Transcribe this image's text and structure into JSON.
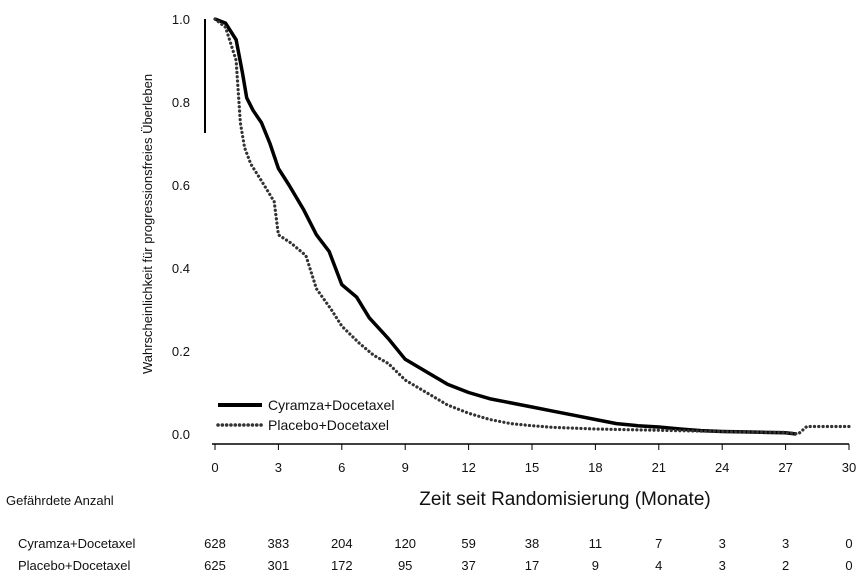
{
  "chart_data": {
    "type": "line",
    "title": "",
    "xlabel": "Zeit seit Randomisierung (Monate)",
    "ylabel": "Wahrscheinlichkeit für progressionsfreies Überleben",
    "xlim": [
      0,
      30
    ],
    "ylim": [
      0,
      1
    ],
    "x_ticks": [
      0,
      3,
      6,
      9,
      12,
      15,
      18,
      21,
      24,
      27,
      30
    ],
    "y_ticks": [
      "0.0",
      "0.2",
      "0.4",
      "0.6",
      "0.8",
      "1.0"
    ],
    "y_tick_values": [
      0,
      0.2,
      0.4,
      0.6,
      0.8,
      1.0
    ],
    "grid": false,
    "legend_position": "bottom-left",
    "series": [
      {
        "name": "Cyramza+Docetaxel",
        "style": "solid",
        "color": "#000000",
        "x": [
          0,
          0.5,
          1.0,
          1.3,
          1.5,
          1.8,
          2.2,
          2.6,
          3.0,
          3.5,
          4.2,
          4.8,
          5.4,
          6.0,
          6.7,
          7.3,
          8.2,
          9.0,
          10.0,
          11.0,
          12.0,
          13.0,
          14.0,
          15.0,
          16.0,
          17.0,
          18.0,
          19.0,
          20.0,
          21.0,
          22.0,
          23.0,
          24.0,
          25.0,
          26.0,
          27.0,
          27.5
        ],
        "y": [
          1.0,
          0.99,
          0.95,
          0.87,
          0.81,
          0.78,
          0.75,
          0.7,
          0.64,
          0.6,
          0.54,
          0.48,
          0.44,
          0.36,
          0.33,
          0.28,
          0.23,
          0.18,
          0.15,
          0.12,
          0.1,
          0.085,
          0.075,
          0.065,
          0.055,
          0.045,
          0.035,
          0.025,
          0.02,
          0.017,
          0.012,
          0.008,
          0.006,
          0.005,
          0.004,
          0.003,
          0.0
        ]
      },
      {
        "name": "Placebo+Docetaxel",
        "style": "dotted",
        "color": "#333333",
        "x": [
          0,
          0.5,
          1.0,
          1.2,
          1.4,
          1.7,
          2.2,
          2.8,
          3.0,
          3.6,
          4.3,
          4.8,
          5.5,
          6.0,
          6.8,
          7.5,
          8.2,
          9.0,
          10.0,
          11.0,
          12.0,
          13.0,
          14.0,
          15.0,
          16.0,
          17.0,
          18.0,
          19.0,
          20.0,
          21.0,
          22.0,
          23.0,
          24.0,
          25.0,
          26.0,
          27.0,
          27.6,
          28.0,
          30.0
        ],
        "y": [
          1.0,
          0.98,
          0.9,
          0.75,
          0.69,
          0.65,
          0.61,
          0.56,
          0.48,
          0.46,
          0.43,
          0.35,
          0.3,
          0.26,
          0.22,
          0.19,
          0.17,
          0.13,
          0.1,
          0.07,
          0.05,
          0.035,
          0.025,
          0.02,
          0.016,
          0.014,
          0.012,
          0.011,
          0.01,
          0.009,
          0.008,
          0.007,
          0.006,
          0.005,
          0.004,
          0.004,
          0.0,
          0.018,
          0.018
        ]
      }
    ],
    "risk_table": {
      "title": "Gefährdete Anzahl",
      "rows": [
        {
          "label": "Cyramza+Docetaxel",
          "values": [
            "628",
            "383",
            "204",
            "120",
            "59",
            "38",
            "11",
            "7",
            "3",
            "3",
            "0"
          ]
        },
        {
          "label": "Placebo+Docetaxel",
          "values": [
            "625",
            "301",
            "172",
            "95",
            "37",
            "17",
            "9",
            "4",
            "3",
            "2",
            "0"
          ]
        }
      ]
    }
  }
}
